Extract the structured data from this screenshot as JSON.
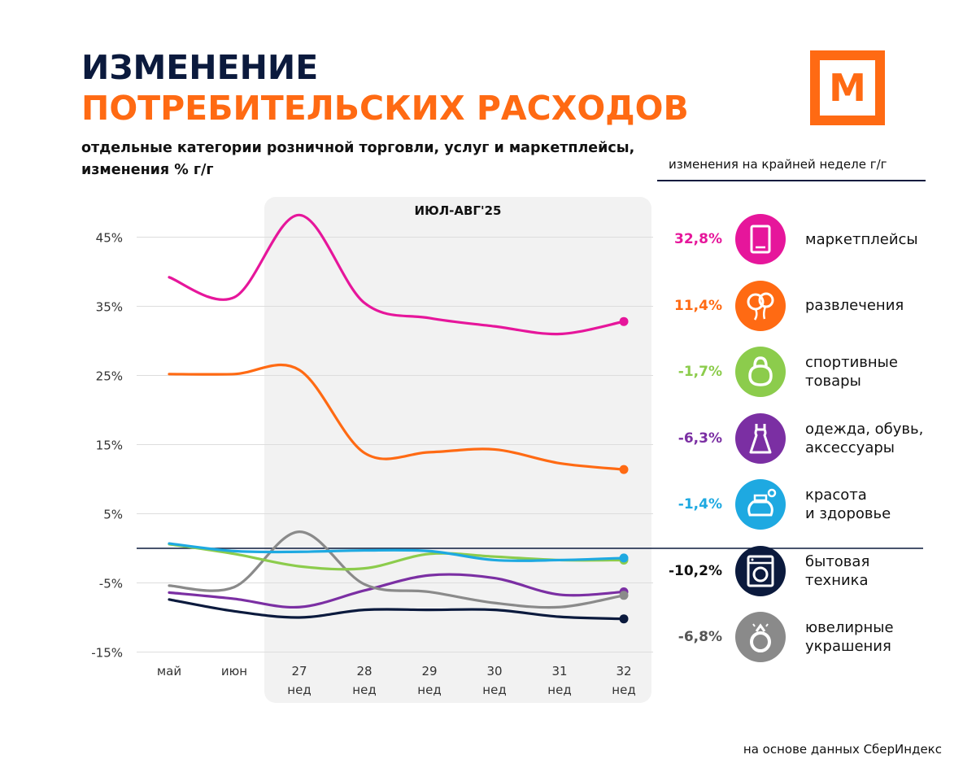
{
  "header": {
    "title_line1": "ИЗМЕНЕНИЕ",
    "title_line2": "ПОТРЕБИТЕЛЬСКИХ РАСХОДОВ",
    "subtitle_line1": "отдельные категории розничной торговли, услуг  и маркетплейсы,",
    "subtitle_line2": "изменения % г/г",
    "logo_letter": "М"
  },
  "legend_header": "изменения на крайней неделе г/г",
  "source": "на основе данных СберИндекс",
  "colors": {
    "navy": "#0b1a3d",
    "orange": "#ff6a13",
    "magenta": "#e6169b",
    "green": "#8ccc4c",
    "purple": "#7b2fa3",
    "cyan": "#1ea9e1",
    "gray": "#8a8a8a"
  },
  "chart_data": {
    "type": "line",
    "highlight_label": "ИЮЛ-АВГ'25",
    "x": [
      "май",
      "июн",
      "27",
      "28",
      "29",
      "30",
      "31",
      "32"
    ],
    "x_sublabels": [
      "",
      "",
      "нед",
      "нед",
      "нед",
      "нед",
      "нед",
      "нед"
    ],
    "ylim": [
      -15,
      50
    ],
    "yticks": [
      45,
      35,
      25,
      15,
      5,
      -5,
      -15
    ],
    "ytick_labels": [
      "45%",
      "35%",
      "25%",
      "15%",
      "5%",
      "-5%",
      "-15%"
    ],
    "series": [
      {
        "name": "маркетплейсы",
        "value_label": "32,8%",
        "color": "#e6169b",
        "icon": "tablet-icon",
        "values": [
          39.2,
          36.3,
          48.2,
          35.5,
          33.3,
          32.1,
          31.0,
          32.8
        ]
      },
      {
        "name": "развлечения",
        "value_label": "11,4%",
        "color": "#ff6a13",
        "icon": "balloons-icon",
        "values": [
          25.2,
          25.2,
          25.8,
          13.8,
          13.9,
          14.3,
          12.3,
          11.4
        ]
      },
      {
        "name": "спортивные товары",
        "value_label": "-1,7%",
        "color": "#8ccc4c",
        "icon": "kettlebell-icon",
        "values": [
          0.6,
          -0.8,
          -2.6,
          -2.9,
          -0.8,
          -1.2,
          -1.7,
          -1.7
        ]
      },
      {
        "name": "одежда, обувь, аксессуары",
        "value_label": "-6,3%",
        "color": "#7b2fa3",
        "icon": "dress-icon",
        "values": [
          -6.4,
          -7.3,
          -8.5,
          -6.1,
          -3.9,
          -4.3,
          -6.7,
          -6.3
        ]
      },
      {
        "name": "красота и здоровье",
        "value_label": "-1,4%",
        "color": "#1ea9e1",
        "icon": "perfume-icon",
        "values": [
          0.7,
          -0.4,
          -0.5,
          -0.3,
          -0.4,
          -1.7,
          -1.7,
          -1.4
        ]
      },
      {
        "name": "бытовая техника",
        "value_label": "-10,2%",
        "color": "#0b1a3d",
        "icon": "washing-machine-icon",
        "values": [
          -7.4,
          -9.1,
          -10.0,
          -8.9,
          -8.9,
          -8.9,
          -9.9,
          -10.2
        ]
      },
      {
        "name": "ювелирные украшения",
        "value_label": "-6,8%",
        "color": "#8a8a8a",
        "icon": "ring-icon",
        "values": [
          -5.4,
          -5.6,
          2.4,
          -5.2,
          -6.3,
          -7.9,
          -8.5,
          -6.8
        ]
      }
    ]
  }
}
